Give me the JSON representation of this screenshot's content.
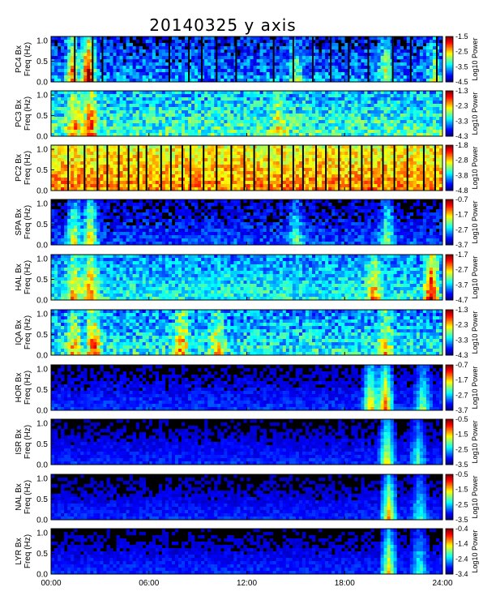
{
  "chart_data": {
    "type": "heatmap",
    "title": "20140325 y axis",
    "xlabel": "",
    "x_ticks": [
      "00:00",
      "06:00",
      "12:00",
      "18:00",
      "24:00"
    ],
    "xlim_hours": [
      0,
      24
    ],
    "colorbar_label": "Log10 Power",
    "panels": [
      {
        "ylabel": "PC4 Bx\nFreq (Hz)",
        "yticks": [
          "1.0",
          "0.5",
          "0.0"
        ],
        "ylim": [
          0,
          1.1
        ],
        "cbar_ticks": [
          "-1.5",
          "-2.5",
          "-3.5",
          "-4.5"
        ],
        "clim": [
          -4.5,
          -1.5
        ]
      },
      {
        "ylabel": "PC3 Bx\nFreq (Hz)",
        "yticks": [
          "1.0",
          "0.5",
          "0.0"
        ],
        "ylim": [
          0,
          1.1
        ],
        "cbar_ticks": [
          "-1.3",
          "-2.3",
          "-3.3",
          "-4.3"
        ],
        "clim": [
          -4.3,
          -1.3
        ]
      },
      {
        "ylabel": "PC2 Bx\nFreq (Hz)",
        "yticks": [
          "1.0",
          "0.5",
          "0.0"
        ],
        "ylim": [
          0,
          1.1
        ],
        "cbar_ticks": [
          "-1.8",
          "-2.8",
          "-3.8",
          "-4.8"
        ],
        "clim": [
          -4.8,
          -1.8
        ]
      },
      {
        "ylabel": "SPA Bx\nFreq (Hz)",
        "yticks": [
          "1.0",
          "0.5",
          "0.0"
        ],
        "ylim": [
          0,
          1.1
        ],
        "cbar_ticks": [
          "-0.7",
          "-1.7",
          "-2.7",
          "-3.7"
        ],
        "clim": [
          -3.7,
          -0.7
        ]
      },
      {
        "ylabel": "HAL Bx\nFreq (Hz)",
        "yticks": [
          "1.0",
          "0.5",
          "0.0"
        ],
        "ylim": [
          0,
          1.1
        ],
        "cbar_ticks": [
          "-1.7",
          "-2.7",
          "-3.7",
          "-4.7"
        ],
        "clim": [
          -4.7,
          -1.7
        ]
      },
      {
        "ylabel": "IQA Bx\nFreq (Hz)",
        "yticks": [
          "1.0",
          "0.5",
          "0.0"
        ],
        "ylim": [
          0,
          1.1
        ],
        "cbar_ticks": [
          "-1.3",
          "-2.3",
          "-3.3",
          "-4.3"
        ],
        "clim": [
          -4.3,
          -1.3
        ]
      },
      {
        "ylabel": "HOR Bx\nFreq (Hz)",
        "yticks": [
          "1.0",
          "0.5",
          "0.0"
        ],
        "ylim": [
          0,
          1.1
        ],
        "cbar_ticks": [
          "-0.7",
          "-1.7",
          "-2.7",
          "-3.7"
        ],
        "clim": [
          -3.7,
          -0.7
        ]
      },
      {
        "ylabel": "ISR Bx\nFreq (Hz)",
        "yticks": [
          "1.0",
          "0.5",
          "0.0"
        ],
        "ylim": [
          0,
          1.1
        ],
        "cbar_ticks": [
          "-0.5",
          "-1.5",
          "-2.5",
          "-3.5"
        ],
        "clim": [
          -3.5,
          -0.5
        ]
      },
      {
        "ylabel": "NAL Bx\nFreq (Hz)",
        "yticks": [
          "1.0",
          "0.5",
          "0.0"
        ],
        "ylim": [
          0,
          1.1
        ],
        "cbar_ticks": [
          "-0.5",
          "-1.5",
          "-2.5",
          "-3.5"
        ],
        "clim": [
          -3.5,
          -0.5
        ]
      },
      {
        "ylabel": "LYR Bx\nFreq (Hz)",
        "yticks": [
          "1.0",
          "0.5",
          "0.0"
        ],
        "ylim": [
          0,
          1.1
        ],
        "cbar_ticks": [
          "-0.4",
          "-1.4",
          "-2.4",
          "-3.4"
        ],
        "clim": [
          -3.4,
          -0.4
        ]
      }
    ]
  }
}
